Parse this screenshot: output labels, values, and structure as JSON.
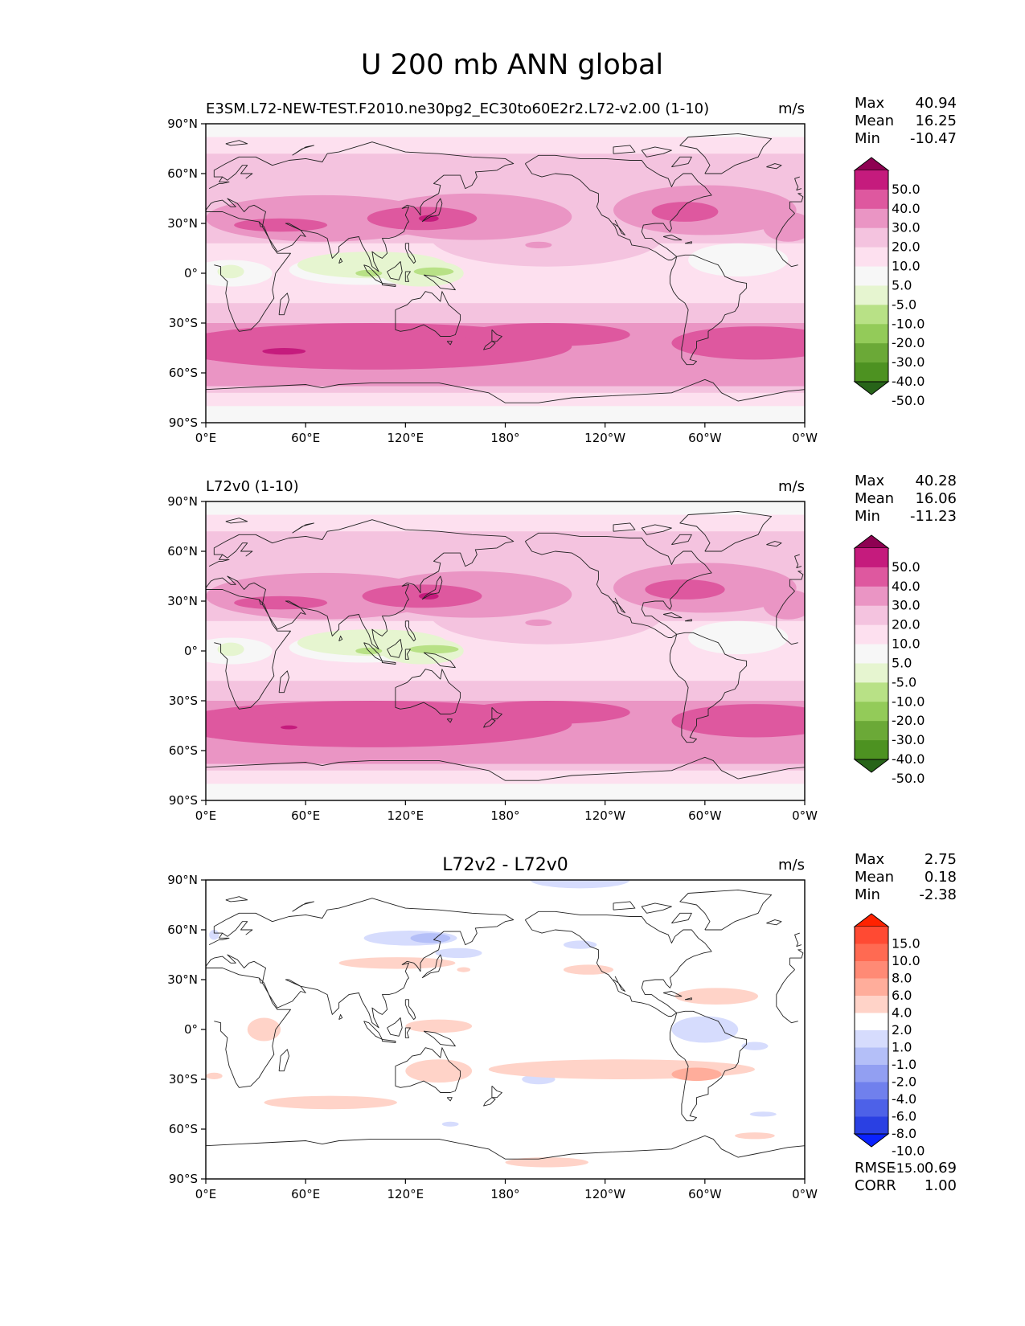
{
  "figure": {
    "title": "U 200 mb ANN global"
  },
  "colors": {
    "pink_levels": [
      "#8e0152",
      "#c51b7d",
      "#de589f",
      "#ea95c4",
      "#f4c3df",
      "#fde0ef",
      "#f7f7f7",
      "#e6f5d0",
      "#b8e186",
      "#93cb59",
      "#6ba937",
      "#4d9221",
      "#276419"
    ],
    "diff_levels": [
      "#ff2200",
      "#ff4a33",
      "#ff6a52",
      "#ff8a75",
      "#ffad9b",
      "#ffd3c8",
      "#ffffff",
      "#d6dcfd",
      "#b4bff8",
      "#929ff2",
      "#7080ed",
      "#4d61e8",
      "#2a40e3",
      "#0a22ff"
    ]
  },
  "chart_data": [
    {
      "type": "heatmap",
      "title_left": "E3SM.L72-NEW-TEST.F2010.ne30pg2_EC30to60E2r2.L72-v2.00 (1-10)",
      "title_center": "",
      "units": "m/s",
      "x_ticks": [
        "0°E",
        "60°E",
        "120°E",
        "180°",
        "120°W",
        "60°W",
        "0°W"
      ],
      "y_ticks": [
        "90°N",
        "60°N",
        "30°N",
        "0°",
        "30°S",
        "60°S",
        "90°S"
      ],
      "stats": [
        {
          "label": "Max",
          "value": "40.94"
        },
        {
          "label": "Mean",
          "value": "16.25"
        },
        {
          "label": "Min",
          "value": "-10.47"
        }
      ],
      "colorbar_labels": [
        "50.0",
        "40.0",
        "30.0",
        "20.0",
        "10.0",
        "5.0",
        "-5.0",
        "-10.0",
        "-20.0",
        "-30.0",
        "-40.0",
        "-50.0"
      ],
      "field": "model"
    },
    {
      "type": "heatmap",
      "title_left": "L72v0 (1-10)",
      "title_center": "",
      "units": "m/s",
      "x_ticks": [
        "0°E",
        "60°E",
        "120°E",
        "180°",
        "120°W",
        "60°W",
        "0°W"
      ],
      "y_ticks": [
        "90°N",
        "60°N",
        "30°N",
        "0°",
        "30°S",
        "60°S",
        "90°S"
      ],
      "stats": [
        {
          "label": "Max",
          "value": "40.28"
        },
        {
          "label": "Mean",
          "value": "16.06"
        },
        {
          "label": "Min",
          "value": "-11.23"
        }
      ],
      "colorbar_labels": [
        "50.0",
        "40.0",
        "30.0",
        "20.0",
        "10.0",
        "5.0",
        "-5.0",
        "-10.0",
        "-20.0",
        "-30.0",
        "-40.0",
        "-50.0"
      ],
      "field": "ref"
    },
    {
      "type": "heatmap",
      "title_left": "",
      "title_center": "L72v2 - L72v0",
      "units": "m/s",
      "x_ticks": [
        "0°E",
        "60°E",
        "120°E",
        "180°",
        "120°W",
        "60°W",
        "0°W"
      ],
      "y_ticks": [
        "90°N",
        "60°N",
        "30°N",
        "0°",
        "30°S",
        "60°S",
        "90°S"
      ],
      "stats": [
        {
          "label": "Max",
          "value": "2.75"
        },
        {
          "label": "Mean",
          "value": "0.18"
        },
        {
          "label": "Min",
          "value": "-2.38"
        }
      ],
      "colorbar_labels": [
        "15.0",
        "10.0",
        "8.0",
        "6.0",
        "4.0",
        "2.0",
        "1.0",
        "-1.0",
        "-2.0",
        "-4.0",
        "-6.0",
        "-8.0",
        "-10.0",
        "-15.0"
      ],
      "bottom_stats": [
        {
          "label": "RMSE",
          "value": "0.69"
        },
        {
          "label": "CORR",
          "value": "1.00"
        }
      ],
      "field": "diff"
    }
  ]
}
